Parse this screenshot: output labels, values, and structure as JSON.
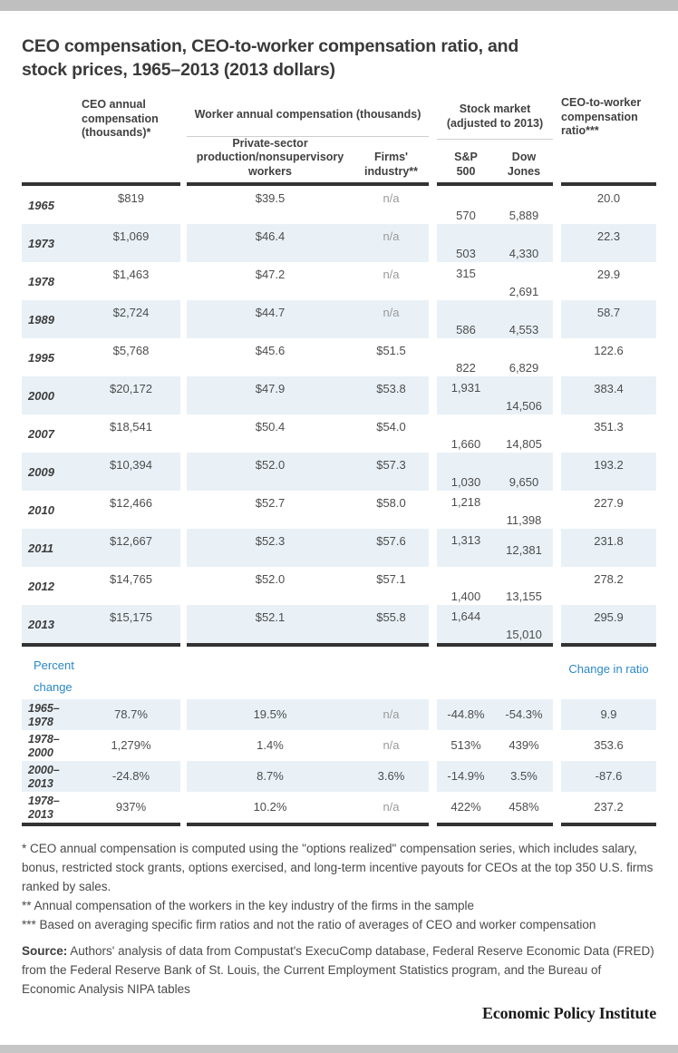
{
  "title_lines": [
    "CEO compensation, CEO-to-worker compensation ratio, and",
    "stock prices, 1965–2013 (2013 dollars)"
  ],
  "colors": {
    "accent_blue": "#2b87c8",
    "row_stripe": "#e9f1f7",
    "rule_dark": "#333333",
    "top_bar_gray": "#bfbfbf"
  },
  "table": {
    "headers": {
      "ceo": "CEO annual compensation (thousands)*",
      "worker_group": "Worker annual compensation (thousands)",
      "worker_private": "Private-sector production/nonsupervisory workers",
      "worker_firms": "Firms' industry**",
      "stock_group": "Stock market (adjusted to 2013)",
      "sp500": "S&P\n500",
      "dow": "Dow\nJones",
      "ratio": "CEO-to-worker compensation ratio***"
    }
  },
  "percent_section": {
    "left_label": "Percent change",
    "right_label": "Change in ratio"
  },
  "chart_data": {
    "type": "table",
    "title": "CEO compensation, CEO-to-worker compensation ratio, and stock prices, 1965–2013 (2013 dollars)",
    "columns": [
      "Year",
      "CEO annual compensation (thousands)*",
      "Private-sector production/nonsupervisory workers",
      "Firms' industry**",
      "S&P 500",
      "Dow Jones",
      "CEO-to-worker compensation ratio***"
    ],
    "rows": [
      {
        "year": "1965",
        "ceo": "$819",
        "private": "$39.5",
        "firms": "n/a",
        "sp500": "570",
        "dow": "5,889",
        "ratio": "20.0",
        "striped": false,
        "sp_pos": "b",
        "dow_pos": "b"
      },
      {
        "year": "1973",
        "ceo": "$1,069",
        "private": "$46.4",
        "firms": "n/a",
        "sp500": "503",
        "dow": "4,330",
        "ratio": "22.3",
        "striped": true,
        "sp_pos": "b",
        "dow_pos": "b"
      },
      {
        "year": "1978",
        "ceo": "$1,463",
        "private": "$47.2",
        "firms": "n/a",
        "sp500": "315",
        "dow": "2,691",
        "ratio": "29.9",
        "striped": false,
        "sp_pos": "t",
        "dow_pos": "b"
      },
      {
        "year": "1989",
        "ceo": "$2,724",
        "private": "$44.7",
        "firms": "n/a",
        "sp500": "586",
        "dow": "4,553",
        "ratio": "58.7",
        "striped": true,
        "sp_pos": "b",
        "dow_pos": "b"
      },
      {
        "year": "1995",
        "ceo": "$5,768",
        "private": "$45.6",
        "firms": "$51.5",
        "sp500": "822",
        "dow": "6,829",
        "ratio": "122.6",
        "striped": false,
        "sp_pos": "b",
        "dow_pos": "b"
      },
      {
        "year": "2000",
        "ceo": "$20,172",
        "private": "$47.9",
        "firms": "$53.8",
        "sp500": "1,931",
        "dow": "14,506",
        "ratio": "383.4",
        "striped": true,
        "sp_pos": "t",
        "dow_pos": "b"
      },
      {
        "year": "2007",
        "ceo": "$18,541",
        "private": "$50.4",
        "firms": "$54.0",
        "sp500": "1,660",
        "dow": "14,805",
        "ratio": "351.3",
        "striped": false,
        "sp_pos": "b",
        "dow_pos": "b"
      },
      {
        "year": "2009",
        "ceo": "$10,394",
        "private": "$52.0",
        "firms": "$57.3",
        "sp500": "1,030",
        "dow": "9,650",
        "ratio": "193.2",
        "striped": true,
        "sp_pos": "b",
        "dow_pos": "b"
      },
      {
        "year": "2010",
        "ceo": "$12,466",
        "private": "$52.7",
        "firms": "$58.0",
        "sp500": "1,218",
        "dow": "11,398",
        "ratio": "227.9",
        "striped": false,
        "sp_pos": "t",
        "dow_pos": "b"
      },
      {
        "year": "2011",
        "ceo": "$12,667",
        "private": "$52.3",
        "firms": "$57.6",
        "sp500": "1,313",
        "dow": "12,381",
        "ratio": "231.8",
        "striped": true,
        "sp_pos": "t",
        "dow_pos": "m"
      },
      {
        "year": "2012",
        "ceo": "$14,765",
        "private": "$52.0",
        "firms": "$57.1",
        "sp500": "1,400",
        "dow": "13,155",
        "ratio": "278.2",
        "striped": false,
        "sp_pos": "b",
        "dow_pos": "b"
      },
      {
        "year": "2013",
        "ceo": "$15,175",
        "private": "$52.1",
        "firms": "$55.8",
        "sp500": "1,644",
        "dow": "15,010",
        "ratio": "295.9",
        "striped": true,
        "sp_pos": "t",
        "dow_pos": "b"
      }
    ],
    "percent_rows": [
      {
        "period": "1965–1978",
        "ceo": "78.7%",
        "private": "19.5%",
        "firms": "n/a",
        "sp500": "-44.8%",
        "dow": "-54.3%",
        "ratio": "9.9",
        "striped": true
      },
      {
        "period": "1978–2000",
        "ceo": "1,279%",
        "private": "1.4%",
        "firms": "n/a",
        "sp500": "513%",
        "dow": "439%",
        "ratio": "353.6",
        "striped": false
      },
      {
        "period": "2000–2013",
        "ceo": "-24.8%",
        "private": "8.7%",
        "firms": "3.6%",
        "sp500": "-14.9%",
        "dow": "3.5%",
        "ratio": "-87.6",
        "striped": true
      },
      {
        "period": "1978–2013",
        "ceo": "937%",
        "private": "10.2%",
        "firms": "n/a",
        "sp500": "422%",
        "dow": "458%",
        "ratio": "237.2",
        "striped": false
      }
    ]
  },
  "footnotes": [
    "* CEO annual compensation is computed using the \"options realized\" compensation series, which includes salary, bonus, restricted stock grants, options exercised, and long-term incentive payouts for CEOs at the top 350 U.S. firms ranked by sales.",
    "** Annual compensation of the workers in the key industry of the firms in the sample",
    "*** Based on averaging specific firm ratios and not the ratio of averages of CEO and worker compensation"
  ],
  "source": {
    "label": "Source:",
    "text": " Authors' analysis of data from Compustat's ExecuComp database, Federal Reserve Economic Data (FRED) from the Federal Reserve Bank of St. Louis, the Current Employment Statistics program, and the Bureau of Economic Analysis NIPA tables"
  },
  "footer": {
    "logo_text": "Economic Policy Institute"
  }
}
